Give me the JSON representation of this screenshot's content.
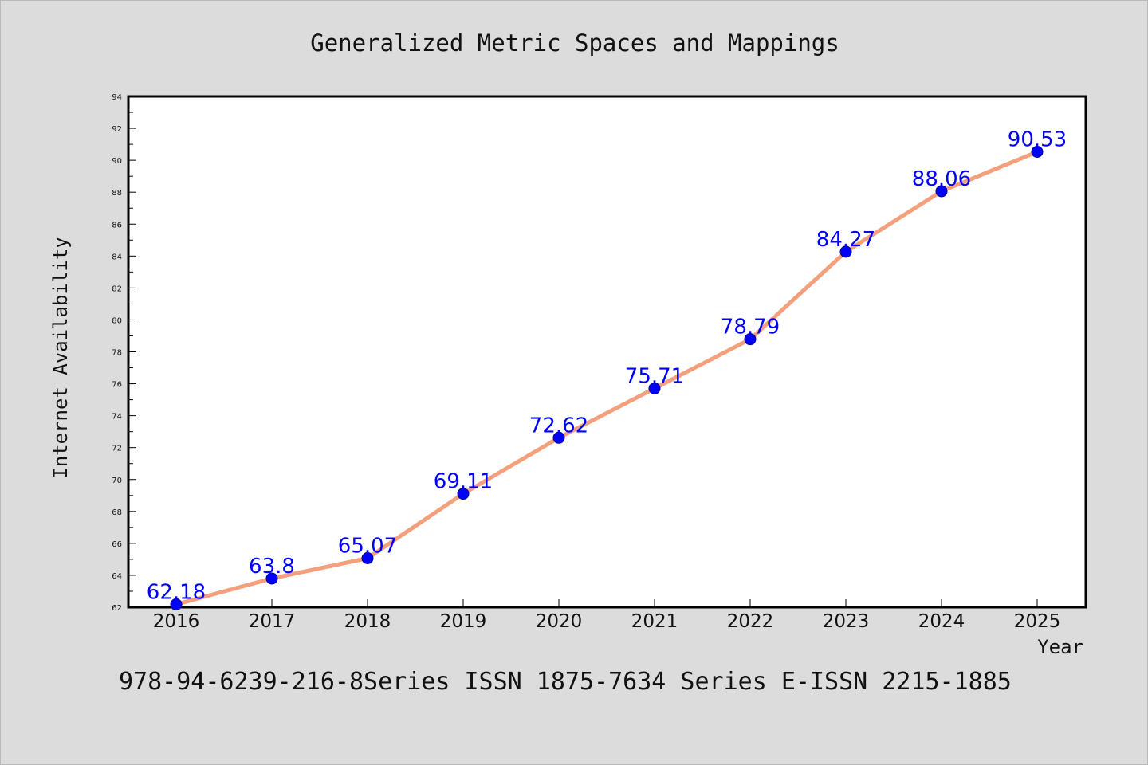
{
  "chart_data": {
    "type": "line",
    "title": "Generalized Metric Spaces and Mappings",
    "xlabel": "Year",
    "ylabel": "Internet Availability",
    "footer": "978-94-6239-216-8Series ISSN 1875-7634 Series E-ISSN 2215-1885",
    "categories": [
      "2016",
      "2017",
      "2018",
      "2019",
      "2020",
      "2021",
      "2022",
      "2023",
      "2024",
      "2025"
    ],
    "values": [
      62.18,
      63.8,
      65.07,
      69.11,
      72.62,
      75.71,
      78.79,
      84.27,
      88.06,
      90.53
    ],
    "value_labels": [
      "62.18",
      "63.8",
      "65.07",
      "69.11",
      "72.62",
      "75.71",
      "78.79",
      "84.27",
      "88.06",
      "90.53"
    ],
    "ylim": [
      62,
      94
    ],
    "yticks": [
      "62",
      "64",
      "66",
      "68",
      "70",
      "72",
      "74",
      "76",
      "78",
      "80",
      "82",
      "84",
      "86",
      "88",
      "90",
      "92",
      "94"
    ],
    "grid": false,
    "legend": "none",
    "colors": {
      "line": "#f4a07c",
      "marker": "#0000ff",
      "data_label": "#0000ff",
      "background": "#dcdcdc",
      "plot_background": "#ffffff"
    }
  }
}
